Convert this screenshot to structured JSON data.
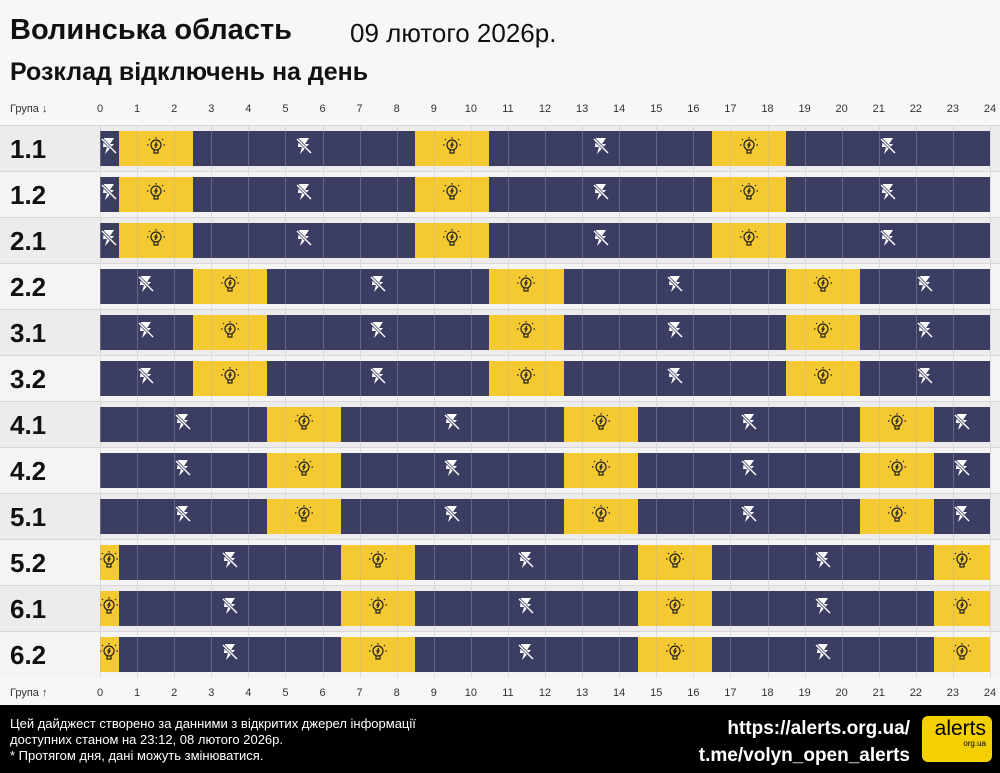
{
  "header": {
    "title": "Волинська область",
    "date": "09 лютого 2026р.",
    "subtitle": "Розклад відключень на день"
  },
  "axis": {
    "top_label": "Група ↓",
    "bottom_label": "Група ↑",
    "ticks": [
      "0",
      "1",
      "2",
      "3",
      "4",
      "5",
      "6",
      "7",
      "8",
      "9",
      "10",
      "11",
      "12",
      "13",
      "14",
      "15",
      "16",
      "17",
      "18",
      "19",
      "20",
      "21",
      "22",
      "23",
      "24"
    ]
  },
  "colors": {
    "power_off": "#3b3d63",
    "power_on": "#f5c932"
  },
  "icons": {
    "off": "power-off-lightning-slash-icon",
    "on": "light-bulb-icon"
  },
  "groups": [
    {
      "name": "1.1",
      "segments": [
        [
          "off",
          0,
          0.5
        ],
        [
          "on",
          0.5,
          2.5
        ],
        [
          "off",
          2.5,
          8.5
        ],
        [
          "on",
          8.5,
          10.5
        ],
        [
          "off",
          10.5,
          16.5
        ],
        [
          "on",
          16.5,
          18.5
        ],
        [
          "off",
          18.5,
          24
        ]
      ]
    },
    {
      "name": "1.2",
      "segments": [
        [
          "off",
          0,
          0.5
        ],
        [
          "on",
          0.5,
          2.5
        ],
        [
          "off",
          2.5,
          8.5
        ],
        [
          "on",
          8.5,
          10.5
        ],
        [
          "off",
          10.5,
          16.5
        ],
        [
          "on",
          16.5,
          18.5
        ],
        [
          "off",
          18.5,
          24
        ]
      ]
    },
    {
      "name": "2.1",
      "segments": [
        [
          "off",
          0,
          0.5
        ],
        [
          "on",
          0.5,
          2.5
        ],
        [
          "off",
          2.5,
          8.5
        ],
        [
          "on",
          8.5,
          10.5
        ],
        [
          "off",
          10.5,
          16.5
        ],
        [
          "on",
          16.5,
          18.5
        ],
        [
          "off",
          18.5,
          24
        ]
      ]
    },
    {
      "name": "2.2",
      "segments": [
        [
          "off",
          0,
          2.5
        ],
        [
          "on",
          2.5,
          4.5
        ],
        [
          "off",
          4.5,
          10.5
        ],
        [
          "on",
          10.5,
          12.5
        ],
        [
          "off",
          12.5,
          18.5
        ],
        [
          "on",
          18.5,
          20.5
        ],
        [
          "off",
          20.5,
          24
        ]
      ]
    },
    {
      "name": "3.1",
      "segments": [
        [
          "off",
          0,
          2.5
        ],
        [
          "on",
          2.5,
          4.5
        ],
        [
          "off",
          4.5,
          10.5
        ],
        [
          "on",
          10.5,
          12.5
        ],
        [
          "off",
          12.5,
          18.5
        ],
        [
          "on",
          18.5,
          20.5
        ],
        [
          "off",
          20.5,
          24
        ]
      ]
    },
    {
      "name": "3.2",
      "segments": [
        [
          "off",
          0,
          2.5
        ],
        [
          "on",
          2.5,
          4.5
        ],
        [
          "off",
          4.5,
          10.5
        ],
        [
          "on",
          10.5,
          12.5
        ],
        [
          "off",
          12.5,
          18.5
        ],
        [
          "on",
          18.5,
          20.5
        ],
        [
          "off",
          20.5,
          24
        ]
      ]
    },
    {
      "name": "4.1",
      "segments": [
        [
          "off",
          0,
          4.5
        ],
        [
          "on",
          4.5,
          6.5
        ],
        [
          "off",
          6.5,
          12.5
        ],
        [
          "on",
          12.5,
          14.5
        ],
        [
          "off",
          14.5,
          20.5
        ],
        [
          "on",
          20.5,
          22.5
        ],
        [
          "off",
          22.5,
          24
        ]
      ]
    },
    {
      "name": "4.2",
      "segments": [
        [
          "off",
          0,
          4.5
        ],
        [
          "on",
          4.5,
          6.5
        ],
        [
          "off",
          6.5,
          12.5
        ],
        [
          "on",
          12.5,
          14.5
        ],
        [
          "off",
          14.5,
          20.5
        ],
        [
          "on",
          20.5,
          22.5
        ],
        [
          "off",
          22.5,
          24
        ]
      ]
    },
    {
      "name": "5.1",
      "segments": [
        [
          "off",
          0,
          4.5
        ],
        [
          "on",
          4.5,
          6.5
        ],
        [
          "off",
          6.5,
          12.5
        ],
        [
          "on",
          12.5,
          14.5
        ],
        [
          "off",
          14.5,
          20.5
        ],
        [
          "on",
          20.5,
          22.5
        ],
        [
          "off",
          22.5,
          24
        ]
      ]
    },
    {
      "name": "5.2",
      "segments": [
        [
          "on",
          0,
          0.5
        ],
        [
          "off",
          0.5,
          6.5
        ],
        [
          "on",
          6.5,
          8.5
        ],
        [
          "off",
          8.5,
          14.5
        ],
        [
          "on",
          14.5,
          16.5
        ],
        [
          "off",
          16.5,
          22.5
        ],
        [
          "on",
          22.5,
          24
        ]
      ]
    },
    {
      "name": "6.1",
      "segments": [
        [
          "on",
          0,
          0.5
        ],
        [
          "off",
          0.5,
          6.5
        ],
        [
          "on",
          6.5,
          8.5
        ],
        [
          "off",
          8.5,
          14.5
        ],
        [
          "on",
          14.5,
          16.5
        ],
        [
          "off",
          16.5,
          22.5
        ],
        [
          "on",
          22.5,
          24
        ]
      ]
    },
    {
      "name": "6.2",
      "segments": [
        [
          "on",
          0,
          0.5
        ],
        [
          "off",
          0.5,
          6.5
        ],
        [
          "on",
          6.5,
          8.5
        ],
        [
          "off",
          8.5,
          14.5
        ],
        [
          "on",
          14.5,
          16.5
        ],
        [
          "off",
          16.5,
          22.5
        ],
        [
          "on",
          22.5,
          24
        ]
      ]
    }
  ],
  "footer": {
    "note_line1": "Цей дайджест створено за данними з відкритих джерел інформації",
    "note_line2": "доступних станом на 23:12, 08 лютого 2026р.",
    "note_line3": "* Протягом дня, дані можуть змінюватися.",
    "link1": "https://alerts.org.ua/",
    "link2": "t.me/volyn_open_alerts",
    "logo_text": "alerts",
    "logo_sub": "org.ua"
  }
}
